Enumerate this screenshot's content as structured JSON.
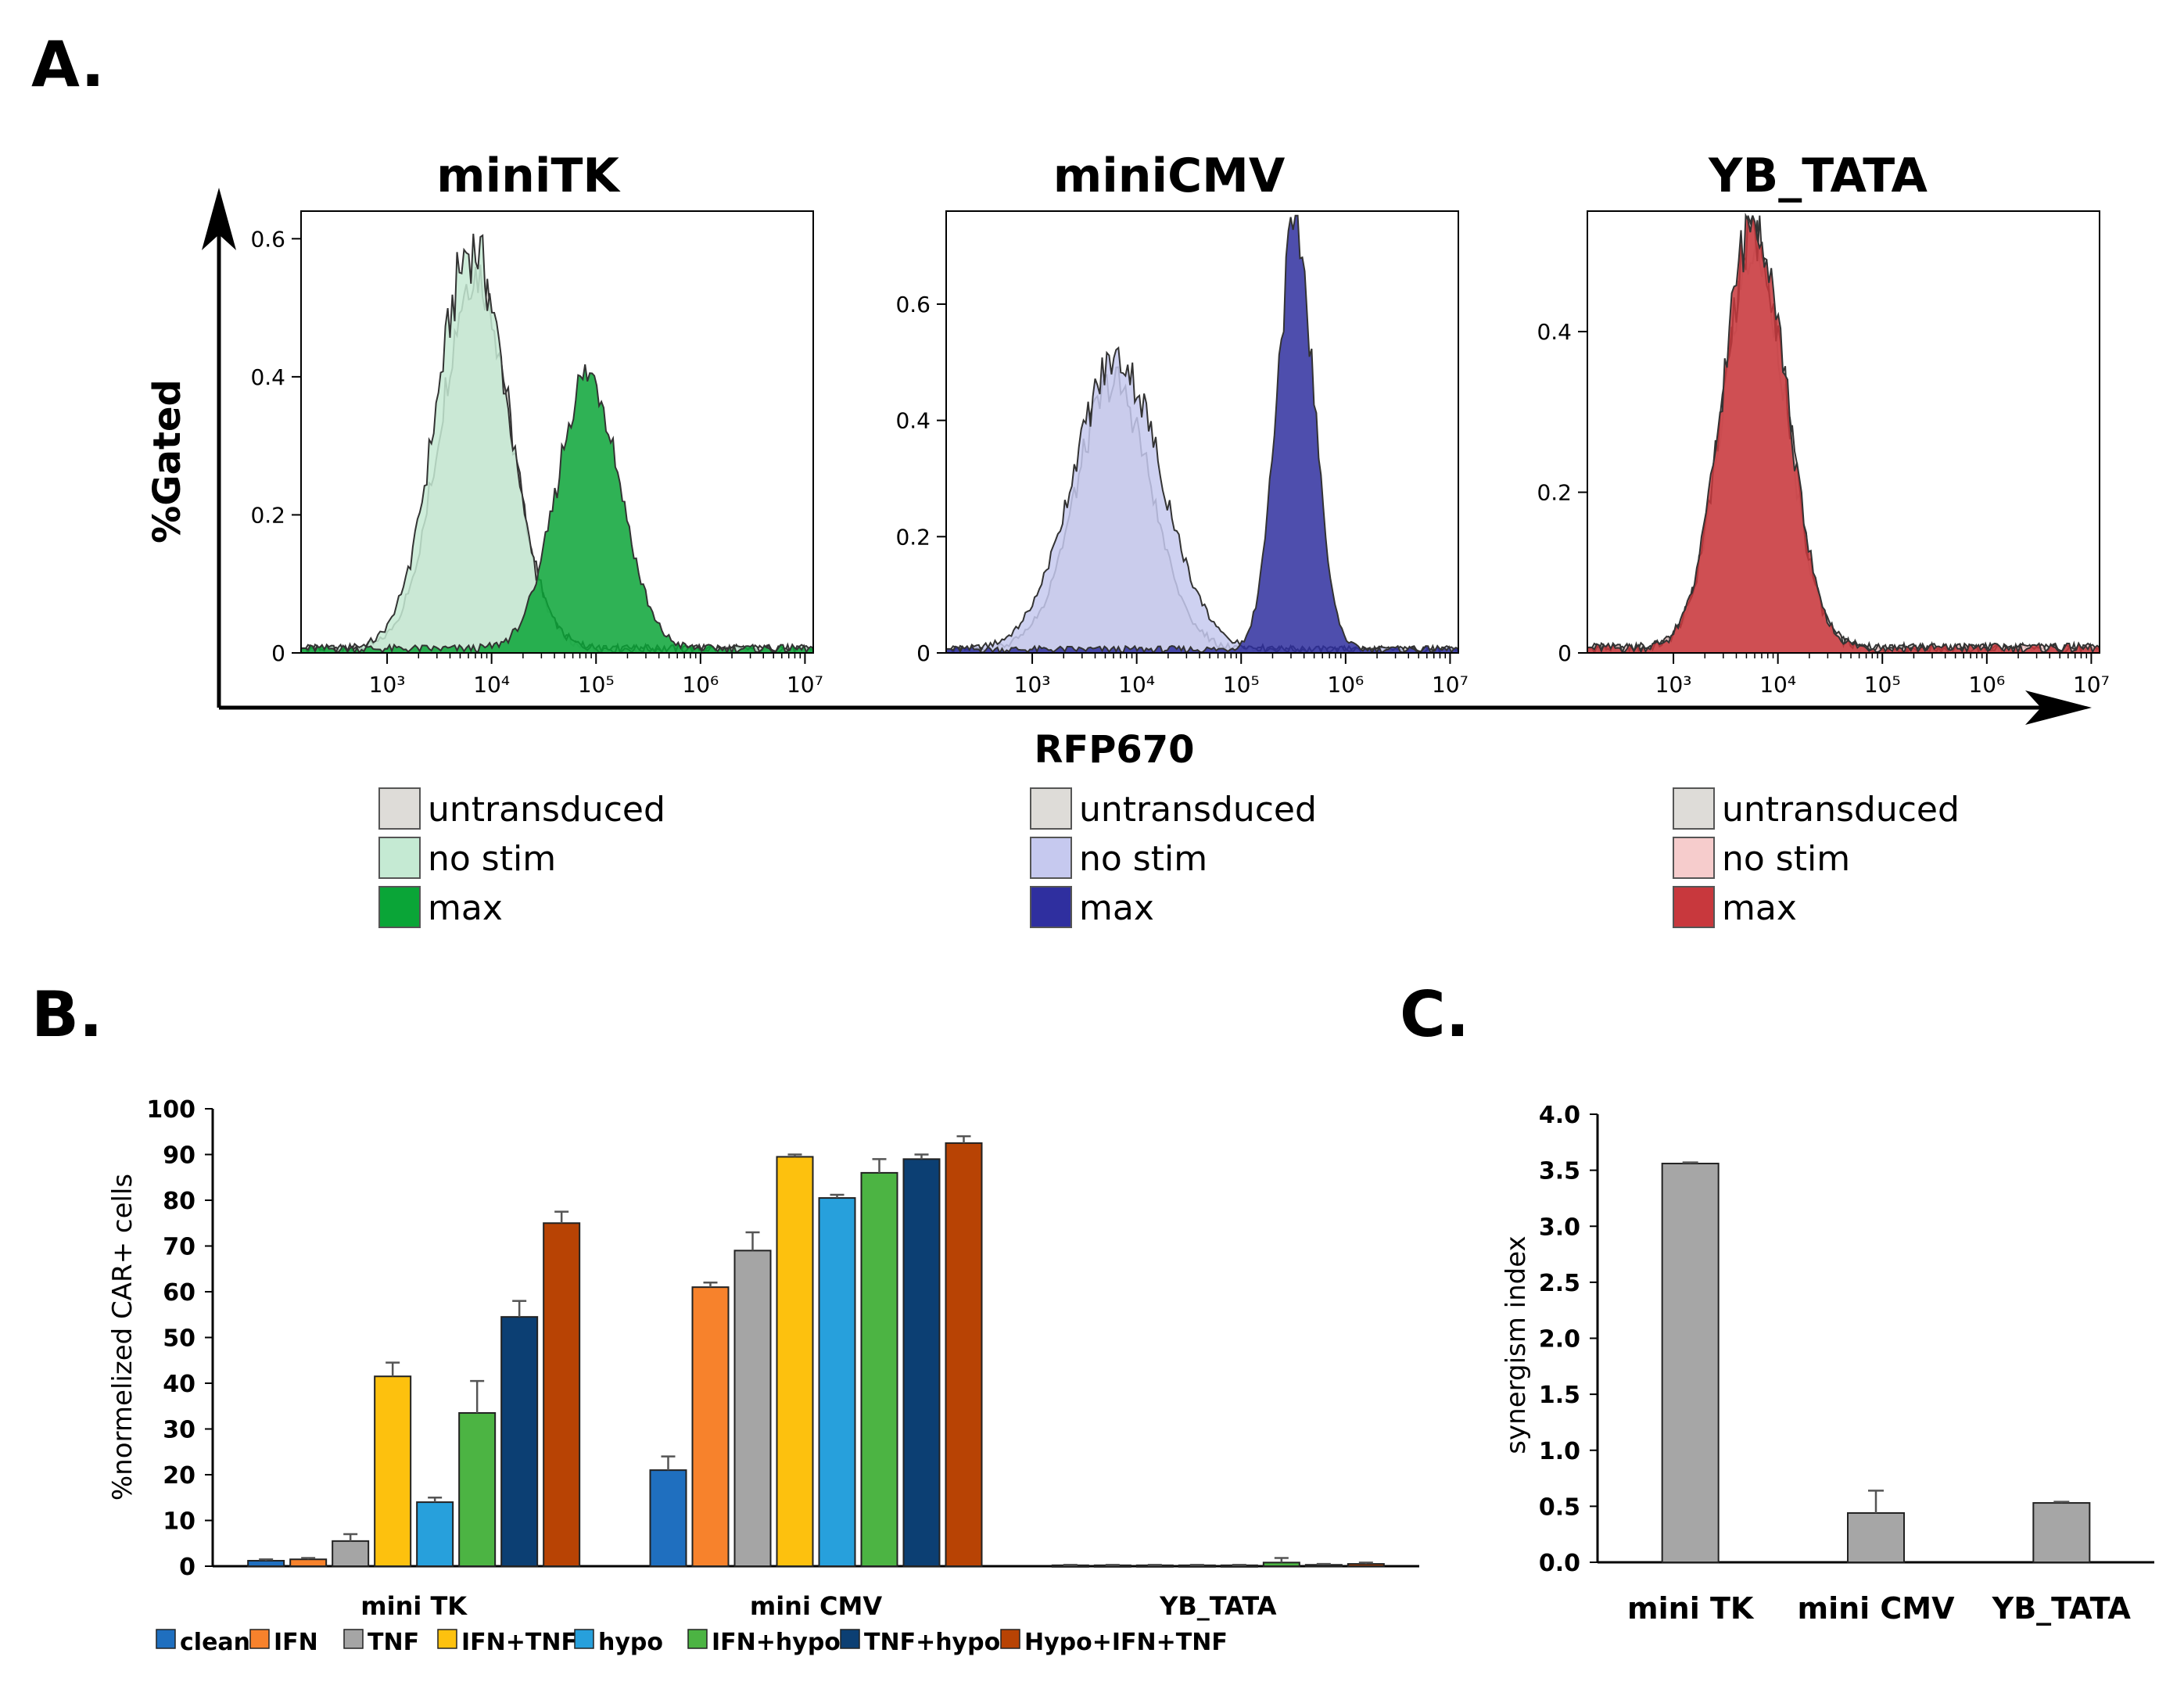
{
  "panel_labels": {
    "a": "A.",
    "b": "B.",
    "c": "C."
  },
  "colors": {
    "untransduced": "#dedcd8",
    "miniTK_nostim": "#c5ead3",
    "miniTK_max": "#0aa537",
    "miniCMV_nostim": "#c6c9ef",
    "miniCMV_max": "#2f2f9f",
    "YB_nostim": "#f6cccc",
    "YB_max": "#c8383d",
    "clean": "#1f6fbf",
    "IFN": "#f7822c",
    "TNF": "#a5a5a5",
    "IFN+TNF": "#fdc10e",
    "hypo": "#27a0dc",
    "IFN+hypo": "#4cb443",
    "TNF+hypo": "#0c3f73",
    "Hypo+IFN+TNF": "#b84304",
    "synergy": "#a6a6a6"
  },
  "chart_data": [
    {
      "type": "area",
      "title": "miniTK",
      "ylabel": "%Gated",
      "xlabel": "RFP670",
      "xscale": "log",
      "xlim": [
        150,
        12000000
      ],
      "ylim": [
        0,
        0.64
      ],
      "x_ticks": [
        1000,
        10000,
        100000,
        1000000,
        10000000
      ],
      "x_tick_labels": [
        "10³",
        "10⁴",
        "10⁵",
        "10⁶",
        "10⁷"
      ],
      "y_ticks": [
        0,
        0.2,
        0.4,
        0.6
      ],
      "y_tick_labels": [
        "0",
        "0.2",
        "0.4",
        "0.6"
      ],
      "series": [
        {
          "name": "untransduced",
          "peak": 7000,
          "height": 0.55,
          "spread": 0.33,
          "color_key": "untransduced"
        },
        {
          "name": "no stim",
          "peak": 6500,
          "height": 0.58,
          "spread": 0.34,
          "color_key": "miniTK_nostim"
        },
        {
          "name": "max",
          "peak": 85000,
          "height": 0.4,
          "spread": 0.3,
          "color_key": "miniTK_max"
        }
      ],
      "legend": [
        "untransduced",
        "no stim",
        "max"
      ]
    },
    {
      "type": "area",
      "title": "miniCMV",
      "xscale": "log",
      "xlim": [
        150,
        12000000
      ],
      "ylim": [
        0,
        0.76
      ],
      "x_ticks": [
        1000,
        10000,
        100000,
        1000000,
        10000000
      ],
      "x_tick_labels": [
        "10³",
        "10⁴",
        "10⁵",
        "10⁶",
        "10⁷"
      ],
      "y_ticks": [
        0,
        0.2,
        0.4,
        0.6
      ],
      "y_tick_labels": [
        "0",
        "0.2",
        "0.4",
        "0.6"
      ],
      "series": [
        {
          "name": "untransduced",
          "peak": 6000,
          "height": 0.46,
          "spread": 0.36,
          "color_key": "untransduced"
        },
        {
          "name": "no stim",
          "peak": 6500,
          "height": 0.5,
          "spread": 0.42,
          "color_key": "miniCMV_nostim"
        },
        {
          "name": "max",
          "peak": 330000,
          "height": 0.72,
          "spread": 0.18,
          "color_key": "miniCMV_max"
        }
      ],
      "legend": [
        "untransduced",
        "no stim",
        "max"
      ]
    },
    {
      "type": "area",
      "title": "YB_TATA",
      "xscale": "log",
      "xlim": [
        150,
        12000000
      ],
      "ylim": [
        0,
        0.55
      ],
      "x_ticks": [
        1000,
        10000,
        100000,
        1000000,
        10000000
      ],
      "x_tick_labels": [
        "10³",
        "10⁴",
        "10⁵",
        "10⁶",
        "10⁷"
      ],
      "y_ticks": [
        0,
        0.2,
        0.4
      ],
      "y_tick_labels": [
        "0",
        "0.2",
        "0.4"
      ],
      "series": [
        {
          "name": "untransduced",
          "peak": 6000,
          "height": 0.5,
          "spread": 0.3,
          "color_key": "untransduced"
        },
        {
          "name": "no stim",
          "peak": 6000,
          "height": 0.52,
          "spread": 0.3,
          "color_key": "YB_nostim"
        },
        {
          "name": "max",
          "peak": 6000,
          "height": 0.54,
          "spread": 0.3,
          "color_key": "YB_max"
        }
      ],
      "legend": [
        "untransduced",
        "no stim",
        "max"
      ]
    },
    {
      "type": "bar",
      "ylabel": "%normelized CAR+ cells",
      "ylim": [
        0,
        100
      ],
      "y_ticks": [
        0,
        10,
        20,
        30,
        40,
        50,
        60,
        70,
        80,
        90,
        100
      ],
      "categories": [
        "mini TK",
        "mini CMV",
        "YB_TATA"
      ],
      "series": [
        {
          "name": "clean",
          "values": [
            1.2,
            21,
            0.2
          ],
          "errors": [
            0.3,
            3,
            0.1
          ]
        },
        {
          "name": "IFN",
          "values": [
            1.5,
            61,
            0.2
          ],
          "errors": [
            0.3,
            1,
            0.1
          ]
        },
        {
          "name": "TNF",
          "values": [
            5.5,
            69,
            0.2
          ],
          "errors": [
            1.5,
            4,
            0.1
          ]
        },
        {
          "name": "IFN+TNF",
          "values": [
            41.5,
            89.5,
            0.2
          ],
          "errors": [
            3,
            0.5,
            0.1
          ]
        },
        {
          "name": "hypo",
          "values": [
            14,
            80.5,
            0.2
          ],
          "errors": [
            1,
            0.7,
            0.1
          ]
        },
        {
          "name": "IFN+hypo",
          "values": [
            33.5,
            86,
            0.8
          ],
          "errors": [
            7,
            3,
            1
          ]
        },
        {
          "name": "TNF+hypo",
          "values": [
            54.5,
            89,
            0.3
          ],
          "errors": [
            3.5,
            1,
            0.2
          ]
        },
        {
          "name": "Hypo+IFN+TNF",
          "values": [
            75,
            92.5,
            0.5
          ],
          "errors": [
            2.5,
            1.5,
            0.3
          ]
        }
      ],
      "legend": [
        "clean",
        "IFN",
        "TNF",
        "IFN+TNF",
        "hypo",
        "IFN+hypo",
        "TNF+hypo",
        "Hypo+IFN+TNF"
      ]
    },
    {
      "type": "bar",
      "ylabel": "synergism index",
      "ylim": [
        0,
        4
      ],
      "y_ticks": [
        0,
        0.5,
        1,
        1.5,
        2,
        2.5,
        3,
        3.5,
        4
      ],
      "y_tick_labels": [
        "0.0",
        "0.5",
        "1.0",
        "1.5",
        "2.0",
        "2.5",
        "3.0",
        "3.5",
        "4.0"
      ],
      "categories": [
        "mini TK",
        "mini CMV",
        "YB_TATA"
      ],
      "values": [
        3.56,
        0.44,
        0.53
      ],
      "errors": [
        0.01,
        0.2,
        0.01
      ]
    }
  ]
}
